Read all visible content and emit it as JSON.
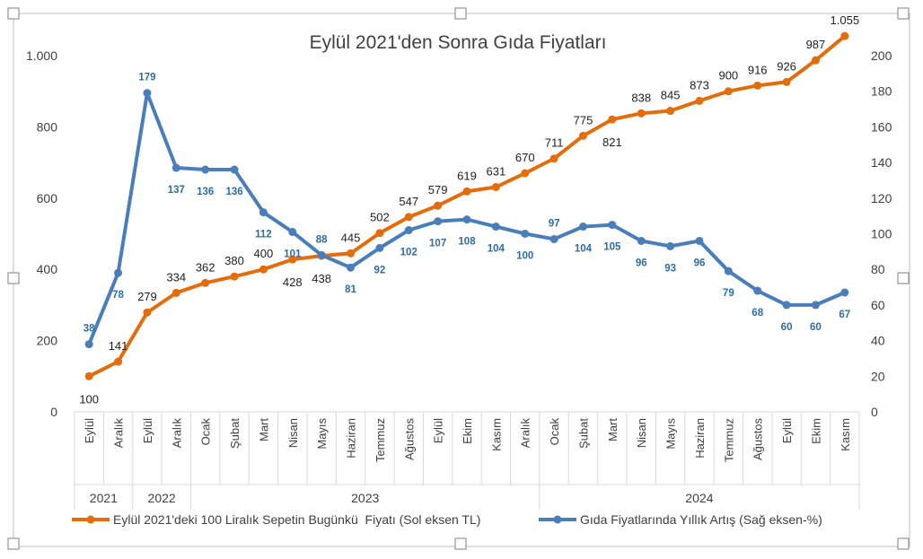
{
  "chart_data": {
    "type": "line",
    "title": "Eylül 2021'den Sonra Gıda Fiyatları",
    "categories": [
      "Eylül",
      "Aralık",
      "Eylül",
      "Aralık",
      "Ocak",
      "Şubat",
      "Mart",
      "Nisan",
      "Mayıs",
      "Haziran",
      "Temmuz",
      "Ağustos",
      "Eylül",
      "Ekim",
      "Kasım",
      "Aralık",
      "Ocak",
      "Şubat",
      "Mart",
      "Nisan",
      "Mayıs",
      "Haziran",
      "Temmuz",
      "Ağustos",
      "Eylül",
      "Ekim",
      "Kasım"
    ],
    "year_groups": [
      {
        "label": "2021",
        "start": 0,
        "end": 1
      },
      {
        "label": "2022",
        "start": 2,
        "end": 3
      },
      {
        "label": "2023",
        "start": 4,
        "end": 15
      },
      {
        "label": "2024",
        "start": 16,
        "end": 26
      }
    ],
    "left_axis": {
      "min": 0,
      "max": 1000,
      "ticks": [
        "0",
        "200",
        "400",
        "600",
        "800",
        "1.000"
      ],
      "tick_values": [
        0,
        200,
        400,
        600,
        800,
        1000
      ]
    },
    "right_axis": {
      "min": 0,
      "max": 200,
      "ticks": [
        "0",
        "20",
        "40",
        "60",
        "80",
        "100",
        "120",
        "140",
        "160",
        "180",
        "200"
      ],
      "tick_values": [
        0,
        20,
        40,
        60,
        80,
        100,
        120,
        140,
        160,
        180,
        200
      ]
    },
    "series": [
      {
        "name": "Eylül 2021'deki 100 Liralık Sepetin Bugünkü  Fiyatı (Sol eksen TL)",
        "axis": "left",
        "color": "#e46c0a",
        "values": [
          100,
          141,
          279,
          334,
          362,
          380,
          400,
          428,
          438,
          445,
          502,
          547,
          579,
          619,
          631,
          670,
          711,
          775,
          821,
          838,
          845,
          873,
          900,
          916,
          926,
          987,
          1055
        ],
        "labels": [
          "100",
          "141",
          "279",
          "334",
          "362",
          "380",
          "400",
          "428",
          "438",
          "445",
          "502",
          "547",
          "579",
          "619",
          "631",
          "670",
          "711",
          "775",
          "821",
          "838",
          "845",
          "873",
          "900",
          "916",
          "926",
          "987",
          "1.055"
        ]
      },
      {
        "name": "Gıda Fiyatlarında Yıllık Artış (Sağ eksen-%)",
        "axis": "right",
        "color": "#4a7ebb",
        "values": [
          38,
          78,
          179,
          137,
          136,
          136,
          112,
          101,
          88,
          81,
          92,
          102,
          107,
          108,
          104,
          100,
          97,
          104,
          105,
          96,
          93,
          96,
          79,
          68,
          60,
          60,
          67
        ],
        "labels": [
          "38",
          "78",
          "179",
          "137",
          "136",
          "136",
          "112",
          "101",
          "88",
          "81",
          "92",
          "102",
          "107",
          "108",
          "104",
          "100",
          "97",
          "104",
          "105",
          "96",
          "93",
          "96",
          "79",
          "68",
          "60",
          "60",
          "67"
        ]
      }
    ]
  }
}
